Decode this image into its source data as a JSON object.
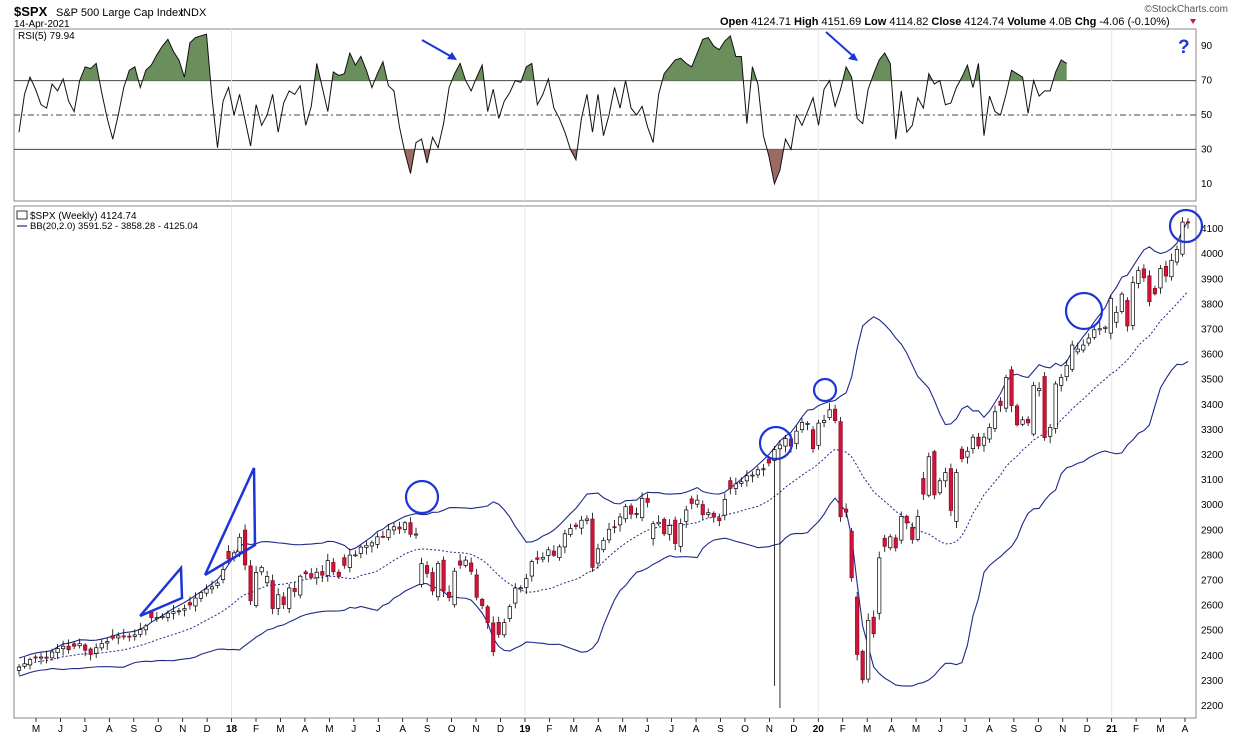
{
  "header": {
    "symbol": "$SPX",
    "name": "S&P 500 Large Cap Index",
    "exchange": "INDX",
    "date": "14-Apr-2021",
    "watermark": "©StockCharts.com",
    "quote": [
      {
        "label": "Open",
        "value": "4124.71"
      },
      {
        "label": "High",
        "value": "4151.69"
      },
      {
        "label": "Low",
        "value": "4114.82"
      },
      {
        "label": "Close",
        "value": "4124.74"
      },
      {
        "label": "Volume",
        "value": "4.0B"
      },
      {
        "label": "Chg",
        "value": "-4.06 (-0.10%)"
      }
    ]
  },
  "rsi_panel": {
    "legend": "RSI(5) 79.94",
    "question_mark": "?"
  },
  "price_panel": {
    "legend_main": "$SPX (Weekly) 4124.74",
    "legend_bb": "BB(20,2.0) 3591.52 - 3858.28 - 4125.04"
  },
  "chart_data": [
    {
      "type": "line",
      "title": "RSI(5) 79.94",
      "ylim": [
        0,
        100
      ],
      "yticks": [
        10,
        30,
        50,
        70,
        90
      ],
      "reference_lines": [
        30,
        50,
        70
      ],
      "overbought": 70,
      "oversold": 30,
      "series": [
        {
          "name": "RSI(5)",
          "values": [
            40,
            62,
            72,
            65,
            56,
            54,
            68,
            64,
            71,
            58,
            52,
            70,
            78,
            77,
            80,
            63,
            48,
            36,
            50,
            66,
            76,
            78,
            66,
            76,
            79,
            85,
            90,
            94,
            87,
            82,
            72,
            92,
            95,
            96,
            97,
            60,
            31,
            58,
            66,
            50,
            62,
            47,
            32,
            56,
            44,
            50,
            62,
            40,
            57,
            64,
            62,
            67,
            44,
            55,
            80,
            66,
            52,
            75,
            73,
            74,
            86,
            79,
            84,
            76,
            66,
            74,
            81,
            67,
            64,
            43,
            28,
            16,
            34,
            36,
            22,
            37,
            31,
            45,
            66,
            74,
            80,
            70,
            64,
            72,
            79,
            52,
            65,
            48,
            58,
            63,
            70,
            69,
            78,
            80,
            56,
            62,
            71,
            54,
            48,
            40,
            30,
            24,
            48,
            62,
            40,
            62,
            38,
            50,
            66,
            54,
            70,
            54,
            50,
            55,
            43,
            34,
            62,
            74,
            78,
            82,
            83,
            80,
            78,
            86,
            94,
            95,
            90,
            88,
            93,
            96,
            84,
            84,
            45,
            78,
            68,
            38,
            26,
            10,
            18,
            36,
            30,
            50,
            44,
            52,
            60,
            44,
            65,
            70,
            55,
            65,
            78,
            72,
            48,
            45,
            65,
            74,
            82,
            86,
            80,
            36,
            64,
            40,
            44,
            60,
            54,
            74,
            68,
            70,
            56,
            57,
            66,
            72,
            79,
            66,
            80,
            38,
            61,
            52,
            50,
            62,
            76,
            74,
            72,
            51,
            70,
            61,
            64,
            64,
            75,
            82,
            80
          ]
        }
      ],
      "annotations": [
        {
          "type": "arrow",
          "direction": "down-right"
        },
        {
          "type": "arrow",
          "direction": "down-right"
        },
        {
          "type": "text",
          "text": "?"
        }
      ]
    },
    {
      "type": "candlestick",
      "title": "$SPX (Weekly) 4124.74",
      "ylim": [
        2180,
        4200
      ],
      "yticks": [
        2200,
        2300,
        2400,
        2500,
        2600,
        2700,
        2800,
        2900,
        3000,
        3100,
        3200,
        3300,
        3400,
        3500,
        3600,
        3700,
        3800,
        3900,
        4000,
        4100
      ],
      "x_ticks": [
        "M",
        "J",
        "J",
        "A",
        "S",
        "O",
        "N",
        "D",
        "18",
        "F",
        "M",
        "A",
        "M",
        "J",
        "J",
        "A",
        "S",
        "O",
        "N",
        "D",
        "19",
        "F",
        "M",
        "A",
        "M",
        "J",
        "J",
        "A",
        "S",
        "O",
        "N",
        "D",
        "20",
        "F",
        "M",
        "A",
        "M",
        "J",
        "J",
        "A",
        "S",
        "O",
        "N",
        "D",
        "21",
        "F",
        "M",
        "A"
      ],
      "close_series": [
        2355,
        2368,
        2385,
        2391,
        2395,
        2390,
        2415,
        2429,
        2438,
        2424,
        2438,
        2448,
        2422,
        2405,
        2432,
        2449,
        2456,
        2470,
        2479,
        2478,
        2477,
        2483,
        2504,
        2519,
        2552,
        2552,
        2557,
        2570,
        2576,
        2579,
        2588,
        2602,
        2630,
        2652,
        2666,
        2675,
        2690,
        2743,
        2786,
        2810,
        2872,
        2762,
        2619,
        2732,
        2752,
        2716,
        2588,
        2643,
        2604,
        2670,
        2656,
        2717,
        2727,
        2712,
        2733,
        2721,
        2779,
        2735,
        2716,
        2760,
        2801,
        2802,
        2833,
        2840,
        2850,
        2874,
        2875,
        2902,
        2914,
        2905,
        2930,
        2884,
        2885,
        2767,
        2728,
        2658,
        2768,
        2658,
        2632,
        2737,
        2761,
        2781,
        2736,
        2633,
        2600,
        2532,
        2416,
        2485,
        2532,
        2596,
        2670,
        2671,
        2708,
        2775,
        2784,
        2792,
        2822,
        2800,
        2834,
        2886,
        2907,
        2915,
        2940,
        2945,
        2752,
        2826,
        2860,
        2904,
        2910,
        2953,
        2994,
        2964,
        2967,
        3027,
        3011,
        2926,
        2932,
        2886,
        2919,
        2847,
        2927,
        2981,
        3007,
        3020,
        2962,
        2970,
        2952,
        2938,
        3023,
        3067,
        3085,
        3093,
        3117,
        3120,
        3141,
        3145,
        3168,
        3221,
        3240,
        3265,
        3235,
        3295,
        3330,
        3326,
        3225,
        3327,
        3338,
        3380,
        3337,
        2954,
        2972,
        2711,
        2405,
        2304,
        2541,
        2488,
        2790,
        2836,
        2874,
        2830,
        2955,
        2929,
        2863,
        2955,
        3044,
        3193,
        3041,
        3097,
        3130,
        2979,
        3130,
        3185,
        3215,
        3271,
        3236,
        3271,
        3310,
        3372,
        3397,
        3508,
        3397,
        3320,
        3340,
        3328,
        3477,
        3465,
        3269,
        3310,
        3483,
        3509,
        3557,
        3638,
        3622,
        3638,
        3666,
        3699,
        3703,
        3709,
        3824,
        3768,
        3841,
        3714,
        3887,
        3935,
        3906,
        3811,
        3842,
        3943,
        3913,
        3975,
        4019,
        4128,
        4124.74
      ],
      "bollinger_bands": {
        "period": 20,
        "stddev": 2.0,
        "lower": 3591.52,
        "middle": 3858.28,
        "upper": 4125.04
      },
      "legend": [
        "$SPX (Weekly) 4124.74",
        "BB(20,2.0) 3591.52 - 3858.28 - 4125.04"
      ],
      "annotations": [
        "wedge outline (2017)",
        "wedge outline (Jan 2018)",
        "circled highs x6"
      ]
    }
  ]
}
